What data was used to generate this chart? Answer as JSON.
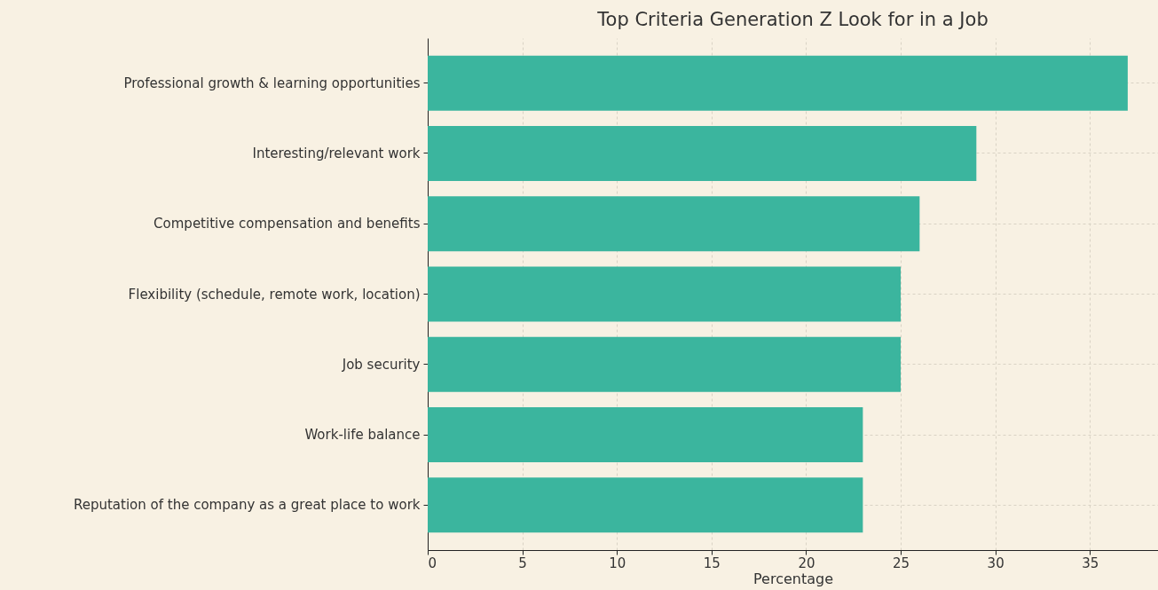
{
  "chart_data": {
    "type": "bar",
    "orientation": "horizontal",
    "title": "Top Criteria Generation Z Look for in a Job",
    "xlabel": "Percentage",
    "categories": [
      "Professional growth & learning opportunities",
      "Interesting/relevant work",
      "Competitive compensation and benefits",
      "Flexibility (schedule, remote work, location)",
      "Job security",
      "Work-life balance",
      "Reputation of the company as a great place to work"
    ],
    "values": [
      37,
      29,
      26,
      25,
      25,
      23,
      23
    ],
    "color": "#3bb59e",
    "xlim": [
      0,
      38.6
    ],
    "xticks": [
      0,
      5,
      10,
      15,
      20,
      25,
      30,
      35
    ],
    "grid": true
  }
}
